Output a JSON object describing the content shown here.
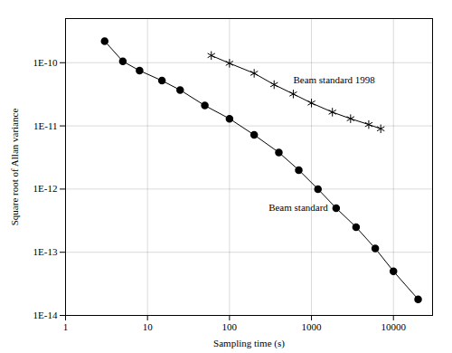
{
  "chart_data": {
    "type": "line",
    "xlabel": "Sampling time (s)",
    "ylabel": "Square root of Allan variance",
    "log": true,
    "grid": true,
    "xlim": [
      1,
      30000
    ],
    "ylim": [
      1e-14,
      5e-10
    ],
    "xticks": [
      1,
      10,
      100,
      1000,
      10000
    ],
    "yticks": [
      {
        "value": 1e-14,
        "label": "1E-14"
      },
      {
        "value": 1e-13,
        "label": "1E-13"
      },
      {
        "value": 1e-12,
        "label": "1E-12"
      },
      {
        "value": 1e-11,
        "label": "1E-11"
      },
      {
        "value": 1e-10,
        "label": "1E-10"
      }
    ],
    "series": [
      {
        "color": "black",
        "marker": "circle",
        "x": [
          3,
          5,
          8,
          15,
          25,
          50,
          100,
          200,
          400,
          700,
          1200,
          2000,
          3500,
          6000,
          10000,
          20000
        ],
        "values": [
          2.2e-10,
          1.05e-10,
          7.5e-11,
          5.2e-11,
          3.7e-11,
          2.1e-11,
          1.3e-11,
          7.2e-12,
          3.8e-12,
          2e-12,
          1e-12,
          5e-13,
          2.5e-13,
          1.15e-13,
          5e-14,
          1.8e-14
        ]
      },
      {
        "color": "black",
        "marker": "asterisk",
        "x": [
          60,
          100,
          200,
          350,
          600,
          1000,
          1800,
          3000,
          5000,
          7000
        ],
        "values": [
          1.3e-10,
          9.8e-11,
          6.8e-11,
          4.5e-11,
          3.2e-11,
          2.3e-11,
          1.65e-11,
          1.3e-11,
          1.05e-11,
          9e-12
        ]
      }
    ],
    "annotations": [
      {
        "text": "Beam standard 1998",
        "x": 600,
        "y": 4.8e-11
      },
      {
        "text": "Beam standard",
        "x": 300,
        "y": 4.5e-13
      }
    ]
  }
}
